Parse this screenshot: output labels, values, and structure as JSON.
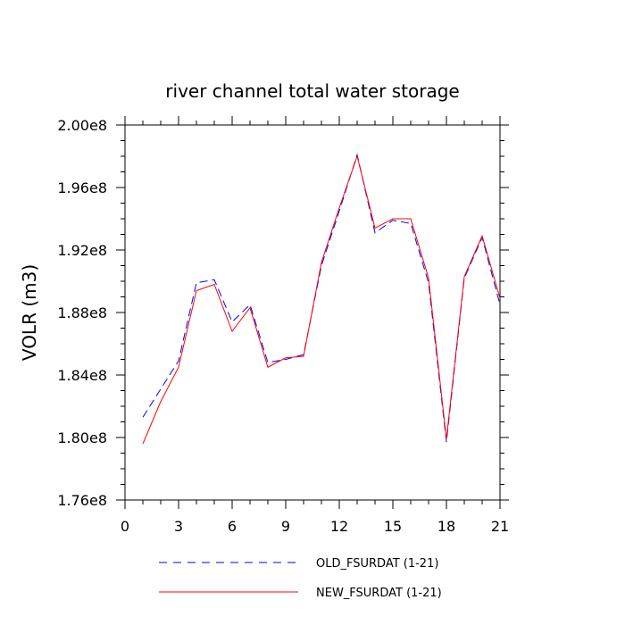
{
  "chart_data": {
    "type": "line",
    "title": "river channel total water storage",
    "xlabel": "",
    "ylabel": "VOLR  (m3)",
    "xlim": [
      0,
      21
    ],
    "ylim": [
      176000000.0,
      200000000.0
    ],
    "x_ticks": [
      0,
      3,
      6,
      9,
      12,
      15,
      18,
      21
    ],
    "y_ticks": [
      176000000.0,
      180000000.0,
      184000000.0,
      188000000.0,
      192000000.0,
      196000000.0,
      200000000.0
    ],
    "y_tick_labels": [
      "1.76e8",
      "1.80e8",
      "1.84e8",
      "1.88e8",
      "1.92e8",
      "1.96e8",
      "2.00e8"
    ],
    "grid": false,
    "legend_placement": "bottom",
    "x": [
      1,
      2,
      3,
      4,
      5,
      6,
      7,
      8,
      9,
      10,
      11,
      12,
      13,
      14,
      15,
      16,
      17,
      18,
      19,
      20,
      21
    ],
    "series": [
      {
        "name": "OLD_FSURDAT (1-21)",
        "color": "#0000ff",
        "dash": "dashed",
        "values": [
          181300000.0,
          183100000.0,
          184900000.0,
          189900000.0,
          190100000.0,
          187400000.0,
          188500000.0,
          184800000.0,
          185000000.0,
          185300000.0,
          191000000.0,
          194500000.0,
          198100000.0,
          193100000.0,
          193900000.0,
          193700000.0,
          189900000.0,
          179700000.0,
          190200000.0,
          192800000.0,
          188500000.0
        ]
      },
      {
        "name": "NEW_FSURDAT (1-21)",
        "color": "#ff0000",
        "dash": "solid",
        "values": [
          179600000.0,
          182300000.0,
          184500000.0,
          189400000.0,
          189800000.0,
          186800000.0,
          188300000.0,
          184500000.0,
          185100000.0,
          185200000.0,
          191200000.0,
          194700000.0,
          198000000.0,
          193400000.0,
          194000000.0,
          194000000.0,
          190200000.0,
          179900000.0,
          190300000.0,
          192900000.0,
          188900000.0
        ]
      }
    ]
  }
}
